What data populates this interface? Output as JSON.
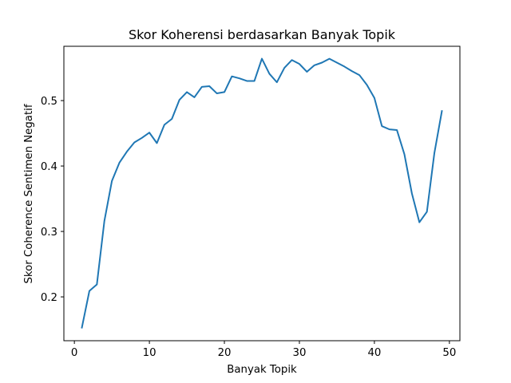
{
  "chart_data": {
    "type": "line",
    "title": "Skor Koherensi berdasarkan Banyak Topik",
    "xlabel": "Banyak Topik",
    "ylabel": "Skor Coherence Sentimen Negatif",
    "xlim": [
      -1.4,
      51.4
    ],
    "ylim": [
      0.133,
      0.583
    ],
    "xticks": [
      0,
      10,
      20,
      30,
      40,
      50
    ],
    "yticks": [
      0.2,
      0.3,
      0.4,
      0.5
    ],
    "xtick_labels": [
      "0",
      "10",
      "20",
      "30",
      "40",
      "50"
    ],
    "ytick_labels": [
      "0.2",
      "0.3",
      "0.4",
      "0.5"
    ],
    "grid": false,
    "series": [
      {
        "color": "#1f77b4",
        "x": [
          1,
          2,
          3,
          4,
          5,
          6,
          7,
          8,
          9,
          10,
          11,
          12,
          13,
          14,
          15,
          16,
          17,
          18,
          19,
          20,
          21,
          22,
          23,
          24,
          25,
          26,
          27,
          28,
          29,
          30,
          31,
          32,
          33,
          34,
          35,
          36,
          37,
          38,
          39,
          40,
          41,
          42,
          43,
          44,
          45,
          46,
          47,
          48,
          49
        ],
        "values": [
          0.153,
          0.209,
          0.219,
          0.316,
          0.377,
          0.405,
          0.422,
          0.436,
          0.443,
          0.451,
          0.435,
          0.463,
          0.472,
          0.501,
          0.513,
          0.505,
          0.521,
          0.522,
          0.511,
          0.513,
          0.537,
          0.534,
          0.53,
          0.53,
          0.564,
          0.541,
          0.528,
          0.55,
          0.562,
          0.556,
          0.544,
          0.554,
          0.558,
          0.564,
          0.558,
          0.552,
          0.545,
          0.539,
          0.524,
          0.504,
          0.461,
          0.456,
          0.455,
          0.418,
          0.358,
          0.314,
          0.33,
          0.42,
          0.484
        ]
      }
    ]
  }
}
